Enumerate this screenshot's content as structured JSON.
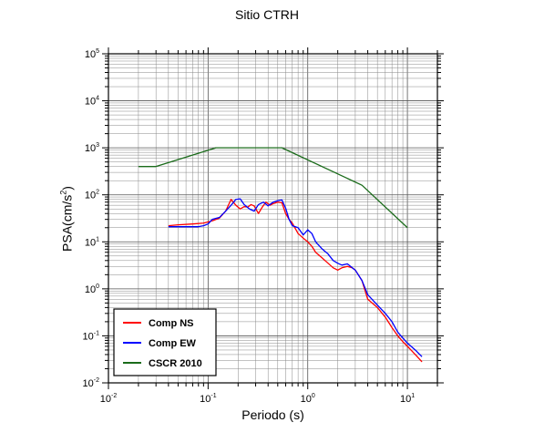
{
  "chart_data": {
    "type": "line",
    "title": "Sitio CTRH",
    "xlabel": "Periodo (s)",
    "ylabel_main": "PSA(cm/s",
    "ylabel_sup": "2",
    "ylabel_end": ")",
    "x_scale": "log",
    "y_scale": "log",
    "xlim": [
      0.01,
      20
    ],
    "ylim": [
      0.01,
      100000
    ],
    "grid": true,
    "legend_position": "bottom-left",
    "x_ticks": [
      {
        "value": 0.01,
        "base": "10",
        "exp": "-2"
      },
      {
        "value": 0.1,
        "base": "10",
        "exp": "-1"
      },
      {
        "value": 1,
        "base": "10",
        "exp": "0"
      },
      {
        "value": 10,
        "base": "10",
        "exp": "1"
      }
    ],
    "y_ticks": [
      {
        "value": 0.01,
        "base": "10",
        "exp": "-2"
      },
      {
        "value": 0.1,
        "base": "10",
        "exp": "-1"
      },
      {
        "value": 1,
        "base": "10",
        "exp": "0"
      },
      {
        "value": 10,
        "base": "10",
        "exp": "1"
      },
      {
        "value": 100,
        "base": "10",
        "exp": "2"
      },
      {
        "value": 1000,
        "base": "10",
        "exp": "3"
      },
      {
        "value": 10000,
        "base": "10",
        "exp": "4"
      },
      {
        "value": 100000,
        "base": "10",
        "exp": "5"
      }
    ],
    "series": [
      {
        "name": "Comp NS",
        "color": "#ff0000",
        "points": [
          [
            0.04,
            22
          ],
          [
            0.05,
            23
          ],
          [
            0.07,
            24
          ],
          [
            0.09,
            25
          ],
          [
            0.11,
            28
          ],
          [
            0.13,
            32
          ],
          [
            0.15,
            45
          ],
          [
            0.17,
            80
          ],
          [
            0.19,
            60
          ],
          [
            0.21,
            50
          ],
          [
            0.23,
            56
          ],
          [
            0.25,
            55
          ],
          [
            0.27,
            62
          ],
          [
            0.29,
            58
          ],
          [
            0.32,
            40
          ],
          [
            0.35,
            55
          ],
          [
            0.38,
            70
          ],
          [
            0.42,
            60
          ],
          [
            0.45,
            65
          ],
          [
            0.5,
            70
          ],
          [
            0.55,
            68
          ],
          [
            0.6,
            40
          ],
          [
            0.65,
            30
          ],
          [
            0.7,
            25
          ],
          [
            0.8,
            15
          ],
          [
            0.9,
            12
          ],
          [
            1.0,
            10
          ],
          [
            1.1,
            8
          ],
          [
            1.2,
            6
          ],
          [
            1.4,
            4.5
          ],
          [
            1.6,
            3.5
          ],
          [
            1.8,
            2.8
          ],
          [
            2.0,
            2.5
          ],
          [
            2.2,
            2.8
          ],
          [
            2.5,
            3.0
          ],
          [
            2.8,
            2.8
          ],
          [
            3.0,
            2.5
          ],
          [
            3.5,
            1.5
          ],
          [
            4.0,
            0.6
          ],
          [
            5.0,
            0.4
          ],
          [
            6.0,
            0.25
          ],
          [
            7.0,
            0.15
          ],
          [
            8.0,
            0.1
          ],
          [
            9.0,
            0.075
          ],
          [
            10.0,
            0.06
          ],
          [
            12.0,
            0.04
          ],
          [
            14.0,
            0.028
          ]
        ]
      },
      {
        "name": "Comp EW",
        "color": "#0000ff",
        "points": [
          [
            0.04,
            21
          ],
          [
            0.05,
            21
          ],
          [
            0.07,
            21
          ],
          [
            0.08,
            21
          ],
          [
            0.09,
            22
          ],
          [
            0.1,
            24
          ],
          [
            0.11,
            30
          ],
          [
            0.13,
            33
          ],
          [
            0.15,
            45
          ],
          [
            0.17,
            60
          ],
          [
            0.19,
            80
          ],
          [
            0.21,
            82
          ],
          [
            0.23,
            62
          ],
          [
            0.26,
            50
          ],
          [
            0.29,
            45
          ],
          [
            0.32,
            62
          ],
          [
            0.36,
            70
          ],
          [
            0.4,
            58
          ],
          [
            0.45,
            70
          ],
          [
            0.5,
            75
          ],
          [
            0.55,
            78
          ],
          [
            0.6,
            52
          ],
          [
            0.65,
            30
          ],
          [
            0.7,
            22
          ],
          [
            0.8,
            20
          ],
          [
            0.9,
            14
          ],
          [
            1.0,
            18
          ],
          [
            1.1,
            15
          ],
          [
            1.2,
            10
          ],
          [
            1.4,
            7
          ],
          [
            1.6,
            5.5
          ],
          [
            1.8,
            4.0
          ],
          [
            2.0,
            3.5
          ],
          [
            2.2,
            3.2
          ],
          [
            2.5,
            3.4
          ],
          [
            2.8,
            2.8
          ],
          [
            3.0,
            2.5
          ],
          [
            3.5,
            1.5
          ],
          [
            4.0,
            0.75
          ],
          [
            5.0,
            0.45
          ],
          [
            6.0,
            0.3
          ],
          [
            7.0,
            0.2
          ],
          [
            8.0,
            0.12
          ],
          [
            9.0,
            0.09
          ],
          [
            10.0,
            0.07
          ],
          [
            12.0,
            0.05
          ],
          [
            14.0,
            0.036
          ]
        ]
      },
      {
        "name": "CSCR 2010",
        "color": "#1a6b1a",
        "points": [
          [
            0.02,
            400
          ],
          [
            0.03,
            400
          ],
          [
            0.12,
            1000
          ],
          [
            0.55,
            1000
          ],
          [
            3.5,
            160
          ],
          [
            10.0,
            20
          ]
        ]
      }
    ]
  }
}
